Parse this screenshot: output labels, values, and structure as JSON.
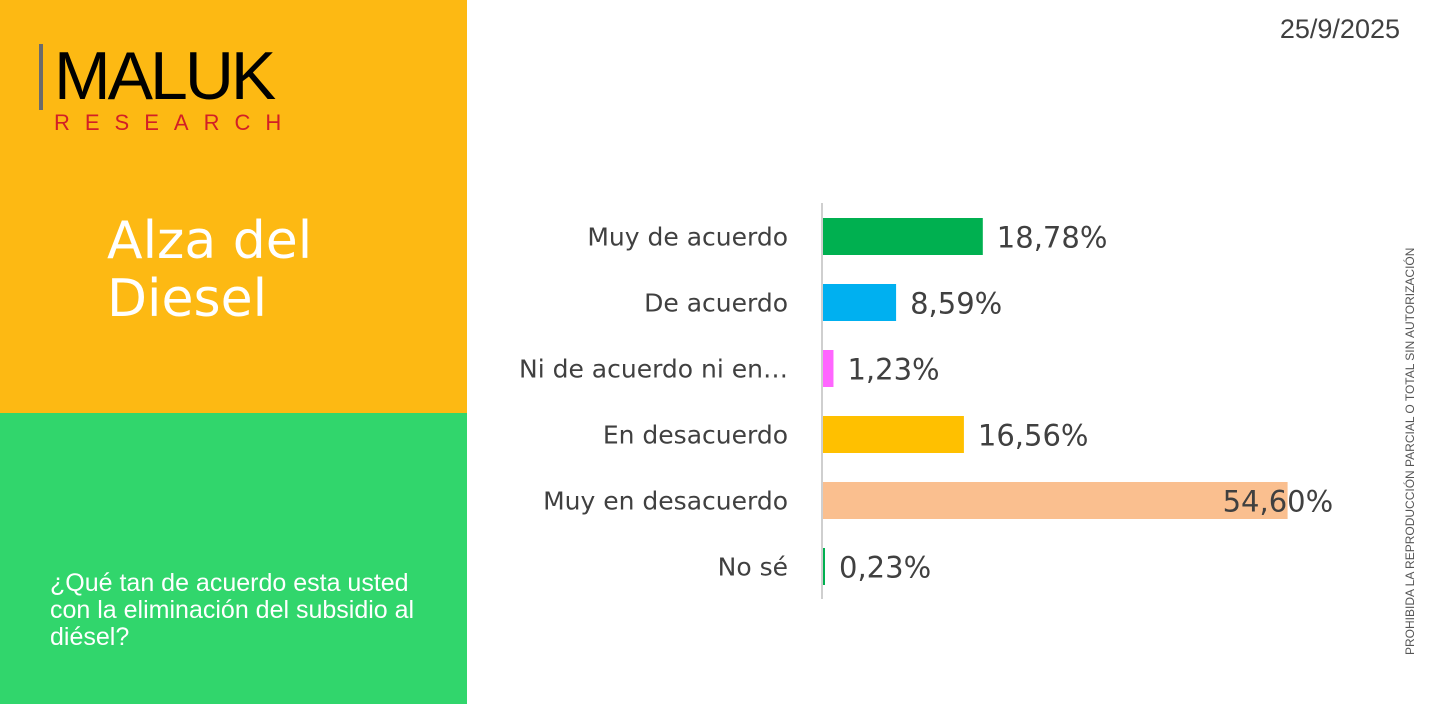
{
  "brand": {
    "name": "MALUK",
    "subtitle": "RESEARCH",
    "colors": {
      "name": "#000000",
      "subtitle": "#D21F26"
    }
  },
  "date": "25/9/2025",
  "section_title": "Alza del Diesel",
  "question": "¿Qué tan de acuerdo esta usted con la eliminación del subsidio al diésel?",
  "side_notice": "PROHIBIDA LA REPRODUCCIÓN PARCIAL O TOTAL SIN AUTORIZACIÓN",
  "colors": {
    "panel_top": "#FDB913",
    "panel_bottom": "#31D66C"
  },
  "chart_data": {
    "type": "bar",
    "orientation": "horizontal",
    "categories": [
      "Muy de acuerdo",
      "De acuerdo",
      "Ni de acuerdo ni en…",
      "En desacuerdo",
      "Muy en desacuerdo",
      "No sé"
    ],
    "values": [
      18.78,
      8.59,
      1.23,
      16.56,
      54.6,
      0.23
    ],
    "value_labels": [
      "18,78%",
      "8,59%",
      "1,23%",
      "16,56%",
      "54,60%",
      "0,23%"
    ],
    "colors": [
      "#00B050",
      "#00B0F0",
      "#FF66FF",
      "#FFC000",
      "#FABF8F",
      "#00B050"
    ],
    "xlim": [
      0,
      55
    ]
  }
}
